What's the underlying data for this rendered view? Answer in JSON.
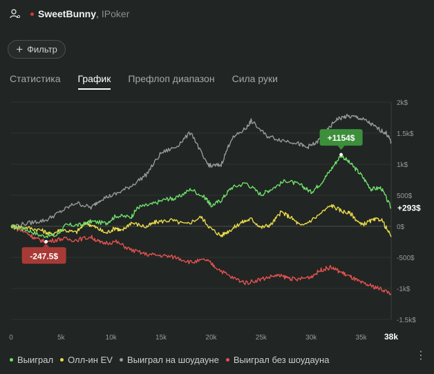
{
  "header": {
    "player_name": "SweetBunny",
    "separator": ",",
    "site": "IPoker",
    "status_dot_color": "#d13b3b"
  },
  "filter": {
    "label": "Фильтр"
  },
  "tabs": [
    {
      "label": "Статистика",
      "active": false
    },
    {
      "label": "График",
      "active": true
    },
    {
      "label": "Префлоп диапазон",
      "active": false
    },
    {
      "label": "Сила руки",
      "active": false
    }
  ],
  "chart_data": {
    "type": "line",
    "x_ticks": [
      "0",
      "5k",
      "10k",
      "15k",
      "20k",
      "25k",
      "30k",
      "35k"
    ],
    "x_end_label": "38k",
    "y_ticks": [
      "2k$",
      "1.5k$",
      "1k$",
      "500$",
      "0$",
      "-500$",
      "-1k$",
      "-1.5k$"
    ],
    "xlim": [
      0,
      38000
    ],
    "ylim": [
      -1500,
      2000
    ],
    "series": [
      {
        "name": "Выиграл",
        "color": "#6fe06a",
        "points": [
          [
            0,
            0
          ],
          [
            1500,
            -50
          ],
          [
            3000,
            -150
          ],
          [
            4500,
            -150
          ],
          [
            5500,
            20
          ],
          [
            7000,
            20
          ],
          [
            8000,
            80
          ],
          [
            9500,
            50
          ],
          [
            10500,
            170
          ],
          [
            12000,
            150
          ],
          [
            12700,
            310
          ],
          [
            14000,
            350
          ],
          [
            15500,
            440
          ],
          [
            16500,
            450
          ],
          [
            18000,
            600
          ],
          [
            19500,
            450
          ],
          [
            20000,
            330
          ],
          [
            21000,
            420
          ],
          [
            22000,
            620
          ],
          [
            23500,
            700
          ],
          [
            25000,
            510
          ],
          [
            26000,
            600
          ],
          [
            27500,
            740
          ],
          [
            29000,
            660
          ],
          [
            30000,
            550
          ],
          [
            31000,
            700
          ],
          [
            32000,
            920
          ],
          [
            33000,
            1150
          ],
          [
            34000,
            1000
          ],
          [
            35000,
            830
          ],
          [
            36000,
            600
          ],
          [
            37000,
            620
          ],
          [
            38000,
            293
          ]
        ]
      },
      {
        "name": "Олл-ин EV",
        "color": "#eadc4a",
        "points": [
          [
            0,
            0
          ],
          [
            1500,
            -20
          ],
          [
            3000,
            -60
          ],
          [
            4000,
            -130
          ],
          [
            5000,
            -50
          ],
          [
            6500,
            -100
          ],
          [
            7500,
            60
          ],
          [
            8500,
            -20
          ],
          [
            9500,
            -110
          ],
          [
            10500,
            -20
          ],
          [
            11000,
            -80
          ],
          [
            12000,
            60
          ],
          [
            13500,
            -10
          ],
          [
            14500,
            70
          ],
          [
            16000,
            100
          ],
          [
            17500,
            30
          ],
          [
            19000,
            150
          ],
          [
            20000,
            -40
          ],
          [
            21000,
            -150
          ],
          [
            22000,
            -50
          ],
          [
            23000,
            60
          ],
          [
            24000,
            120
          ],
          [
            25000,
            -20
          ],
          [
            26000,
            30
          ],
          [
            27000,
            230
          ],
          [
            28000,
            140
          ],
          [
            29000,
            0
          ],
          [
            30500,
            150
          ],
          [
            32000,
            340
          ],
          [
            33000,
            250
          ],
          [
            34000,
            200
          ],
          [
            35000,
            20
          ],
          [
            36000,
            90
          ],
          [
            37000,
            120
          ],
          [
            38000,
            -170
          ]
        ]
      },
      {
        "name": "Выиграл на шоудауне",
        "color": "#9a9a9a",
        "points": [
          [
            0,
            0
          ],
          [
            2000,
            60
          ],
          [
            3500,
            100
          ],
          [
            5000,
            240
          ],
          [
            6500,
            380
          ],
          [
            8000,
            300
          ],
          [
            9000,
            440
          ],
          [
            10500,
            520
          ],
          [
            12000,
            650
          ],
          [
            13500,
            830
          ],
          [
            15000,
            1180
          ],
          [
            16500,
            1280
          ],
          [
            18000,
            1520
          ],
          [
            19500,
            1020
          ],
          [
            20000,
            970
          ],
          [
            21000,
            990
          ],
          [
            22000,
            1400
          ],
          [
            23500,
            1580
          ],
          [
            24000,
            1700
          ],
          [
            25500,
            1460
          ],
          [
            27000,
            1390
          ],
          [
            28500,
            1350
          ],
          [
            29500,
            1270
          ],
          [
            30500,
            1340
          ],
          [
            31500,
            1520
          ],
          [
            32500,
            1720
          ],
          [
            33500,
            1770
          ],
          [
            34500,
            1760
          ],
          [
            35500,
            1700
          ],
          [
            36500,
            1590
          ],
          [
            37500,
            1500
          ],
          [
            38000,
            1360
          ]
        ]
      },
      {
        "name": "Выиграл без шоудауна",
        "color": "#e4524f",
        "points": [
          [
            0,
            0
          ],
          [
            1500,
            -100
          ],
          [
            2500,
            -200
          ],
          [
            3500,
            -250
          ],
          [
            5000,
            -200
          ],
          [
            6500,
            -220
          ],
          [
            8000,
            -170
          ],
          [
            9000,
            -270
          ],
          [
            10500,
            -250
          ],
          [
            12000,
            -380
          ],
          [
            13500,
            -450
          ],
          [
            15000,
            -470
          ],
          [
            16500,
            -500
          ],
          [
            18000,
            -580
          ],
          [
            19500,
            -540
          ],
          [
            20500,
            -660
          ],
          [
            22000,
            -820
          ],
          [
            23500,
            -910
          ],
          [
            25000,
            -850
          ],
          [
            26500,
            -790
          ],
          [
            27500,
            -820
          ],
          [
            28500,
            -860
          ],
          [
            30000,
            -810
          ],
          [
            31000,
            -700
          ],
          [
            32000,
            -660
          ],
          [
            33000,
            -740
          ],
          [
            34000,
            -820
          ],
          [
            35000,
            -910
          ],
          [
            36000,
            -960
          ],
          [
            37000,
            -1010
          ],
          [
            38000,
            -1080
          ]
        ]
      }
    ],
    "annotations": {
      "max_label": "+1154$",
      "min_label": "-247.5$",
      "end_label": "+293$"
    },
    "grid": true,
    "legend_position": "bottom"
  }
}
